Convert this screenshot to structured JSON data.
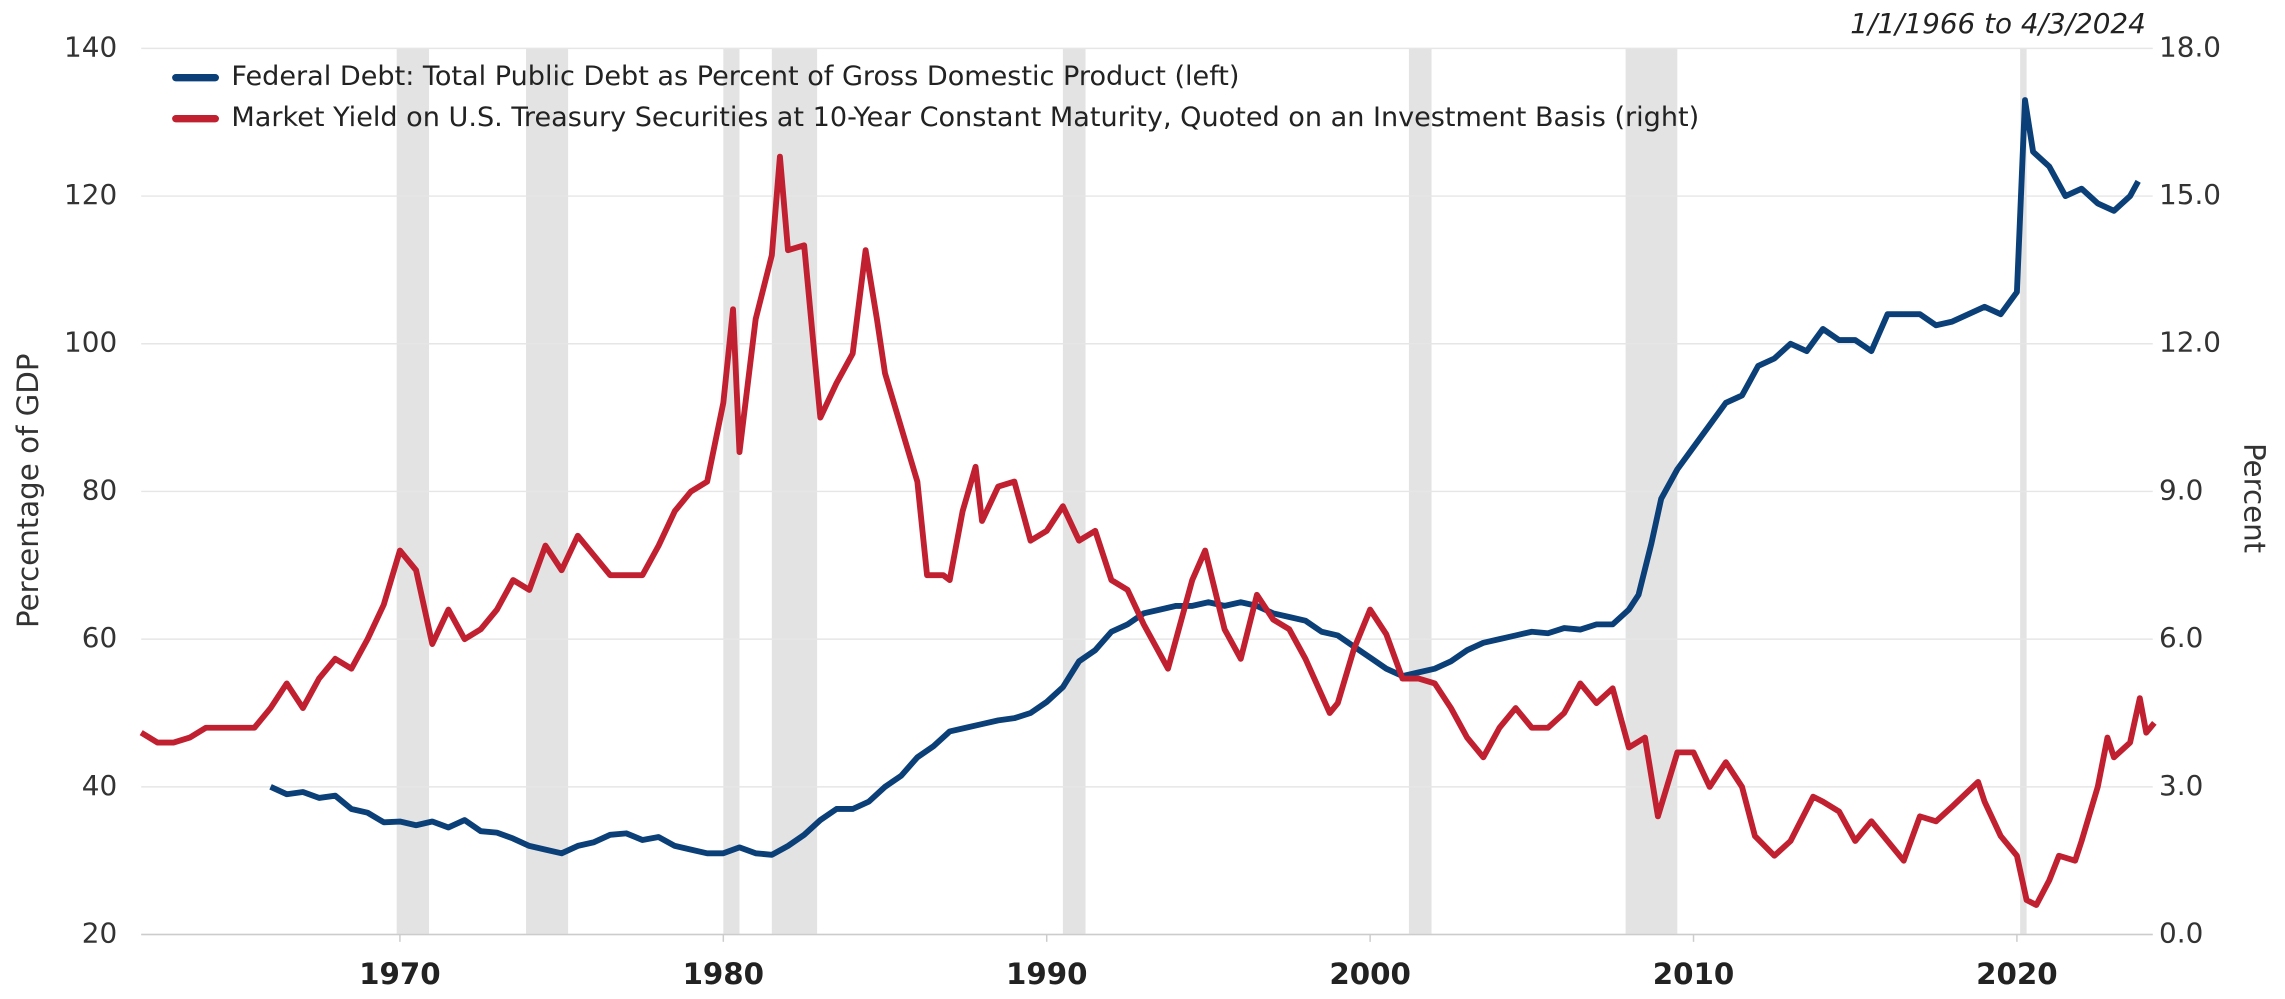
{
  "chart_data": {
    "type": "line",
    "date_range": "1/1/1966 to 4/3/2024",
    "ylabel": "Percentage of GDP",
    "y2label": "Percent",
    "xlim": [
      1962,
      2024.2
    ],
    "xticks": [
      1970,
      1980,
      1990,
      2000,
      2010,
      2020
    ],
    "ylim": [
      20,
      140
    ],
    "yticks": [
      20,
      40,
      60,
      80,
      100,
      120,
      140
    ],
    "y2lim": [
      0,
      18
    ],
    "y2ticks": [
      {
        "value": 0,
        "label": "0.0"
      },
      {
        "value": 3,
        "label": "3.0"
      },
      {
        "value": 6,
        "label": "6.0"
      },
      {
        "value": 9,
        "label": "9.0"
      },
      {
        "value": 12,
        "label": "12.0"
      },
      {
        "value": 15,
        "label": "15.0"
      },
      {
        "value": 18,
        "label": "18.0"
      }
    ],
    "grid": true,
    "legend": "upper left",
    "recessions": [
      [
        1969.9,
        1970.9
      ],
      [
        1973.9,
        1975.2
      ],
      [
        1980.0,
        1980.5
      ],
      [
        1981.5,
        1982.9
      ],
      [
        1990.5,
        1991.2
      ],
      [
        2001.2,
        2001.9
      ],
      [
        2007.9,
        2009.5
      ],
      [
        2020.1,
        2020.3
      ]
    ],
    "recession_color": "#e3e3e3",
    "series": [
      {
        "name": "Federal Debt: Total Public Debt as Percent of Gross Domestic Product (left)",
        "color": "#0b3f78",
        "axis": "y",
        "x": [
          1966,
          1966.5,
          1967,
          1967.5,
          1968,
          1968.5,
          1969,
          1969.5,
          1970,
          1970.5,
          1971,
          1971.5,
          1972,
          1972.5,
          1973,
          1973.5,
          1974,
          1974.5,
          1975,
          1975.5,
          1976,
          1976.5,
          1977,
          1977.5,
          1978,
          1978.5,
          1979,
          1979.5,
          1980,
          1980.5,
          1981,
          1981.5,
          1982,
          1982.5,
          1983,
          1983.5,
          1984,
          1984.5,
          1985,
          1985.5,
          1986,
          1986.5,
          1987,
          1987.5,
          1988,
          1988.5,
          1989,
          1989.5,
          1990,
          1990.5,
          1991,
          1991.5,
          1992,
          1992.5,
          1993,
          1993.5,
          1994,
          1994.5,
          1995,
          1995.5,
          1996,
          1996.5,
          1997,
          1997.5,
          1998,
          1998.5,
          1999,
          1999.5,
          2000,
          2000.5,
          2001,
          2001.5,
          2002,
          2002.5,
          2003,
          2003.5,
          2004,
          2004.5,
          2005,
          2005.5,
          2006,
          2006.5,
          2007,
          2007.5,
          2008,
          2008.3,
          2008.7,
          2009,
          2009.5,
          2010,
          2010.5,
          2011,
          2011.5,
          2012,
          2012.5,
          2013,
          2013.5,
          2014,
          2014.5,
          2015,
          2015.5,
          2016,
          2016.5,
          2017,
          2017.5,
          2018,
          2018.5,
          2019,
          2019.5,
          2020,
          2020.25,
          2020.5,
          2021,
          2021.5,
          2022,
          2022.5,
          2023,
          2023.5,
          2023.75
        ],
        "values": [
          40,
          39,
          39.3,
          38.5,
          38.8,
          37,
          36.5,
          35.2,
          35.3,
          34.8,
          35.3,
          34.5,
          35.5,
          34,
          33.8,
          33,
          32,
          31.5,
          31,
          32,
          32.5,
          33.5,
          33.7,
          32.8,
          33.2,
          32,
          31.5,
          31,
          31,
          31.8,
          31,
          30.8,
          32,
          33.5,
          35.5,
          37,
          37,
          38,
          40,
          41.5,
          44,
          45.5,
          47.5,
          48,
          48.5,
          49,
          49.3,
          50,
          51.5,
          53.5,
          57,
          58.5,
          61,
          62,
          63.5,
          64,
          64.5,
          64.5,
          65,
          64.5,
          65,
          64.5,
          63.5,
          63,
          62.5,
          61,
          60.5,
          59,
          57.5,
          56,
          55,
          55.5,
          56,
          57,
          58.5,
          59.5,
          60,
          60.5,
          61,
          60.8,
          61.5,
          61.3,
          62,
          62,
          64,
          66,
          73,
          79,
          83,
          86,
          89,
          92,
          93,
          97,
          98,
          100,
          99,
          102,
          100.5,
          100.5,
          99,
          104,
          104,
          104,
          102.5,
          103,
          104,
          105,
          104,
          107,
          133,
          126,
          124,
          120,
          121,
          119,
          118,
          120,
          122
        ]
      },
      {
        "name": "Market Yield on U.S. Treasury Securities at 10-Year Constant Maturity, Quoted on an Investment Basis (right)",
        "color": "#c0202f",
        "axis": "y2",
        "x": [
          1962,
          1962.5,
          1963,
          1963.5,
          1964,
          1964.5,
          1965,
          1965.5,
          1966,
          1966.5,
          1967,
          1967.5,
          1968,
          1968.5,
          1969,
          1969.5,
          1970,
          1970.5,
          1971,
          1971.5,
          1972,
          1972.5,
          1973,
          1973.5,
          1974,
          1974.5,
          1975,
          1975.5,
          1976,
          1976.5,
          1977,
          1977.5,
          1978,
          1978.5,
          1979,
          1979.5,
          1980,
          1980.3,
          1980.5,
          1981,
          1981.5,
          1981.75,
          1982,
          1982.5,
          1983,
          1983.5,
          1984,
          1984.4,
          1984.75,
          1985,
          1985.5,
          1986,
          1986.3,
          1986.8,
          1987,
          1987.4,
          1987.8,
          1988,
          1988.5,
          1989,
          1989.5,
          1990,
          1990.5,
          1991,
          1991.5,
          1992,
          1992.5,
          1993,
          1993.75,
          1994,
          1994.5,
          1994.9,
          1995.5,
          1996,
          1996.5,
          1997,
          1997.5,
          1998,
          1998.75,
          1999,
          1999.5,
          2000,
          2000.5,
          2001,
          2001.5,
          2002,
          2002.5,
          2003,
          2003.5,
          2004,
          2004.5,
          2005,
          2005.5,
          2006,
          2006.5,
          2007,
          2007.5,
          2008,
          2008.5,
          2008.9,
          2009.5,
          2010,
          2010.5,
          2011,
          2011.5,
          2011.9,
          2012.5,
          2013,
          2013.7,
          2014,
          2014.5,
          2015,
          2015.5,
          2016,
          2016.5,
          2017,
          2017.5,
          2018,
          2018.8,
          2019,
          2019.5,
          2020,
          2020.3,
          2020.6,
          2021,
          2021.3,
          2021.8,
          2022,
          2022.5,
          2022.8,
          2023,
          2023.5,
          2023.8,
          2024,
          2024.25
        ],
        "values": [
          4.1,
          3.9,
          3.9,
          4.0,
          4.2,
          4.2,
          4.2,
          4.2,
          4.6,
          5.1,
          4.6,
          5.2,
          5.6,
          5.4,
          6.0,
          6.7,
          7.8,
          7.4,
          5.9,
          6.6,
          6.0,
          6.2,
          6.6,
          7.2,
          7.0,
          7.9,
          7.4,
          8.1,
          7.7,
          7.3,
          7.3,
          7.3,
          7.9,
          8.6,
          9.0,
          9.2,
          10.8,
          12.7,
          9.8,
          12.5,
          13.8,
          15.8,
          13.9,
          14.0,
          10.5,
          11.2,
          11.8,
          13.9,
          12.5,
          11.4,
          10.3,
          9.2,
          7.3,
          7.3,
          7.2,
          8.6,
          9.5,
          8.4,
          9.1,
          9.2,
          8.0,
          8.2,
          8.7,
          8.0,
          8.2,
          7.2,
          7.0,
          6.3,
          5.4,
          6.0,
          7.2,
          7.8,
          6.2,
          5.6,
          6.9,
          6.4,
          6.2,
          5.6,
          4.5,
          4.7,
          5.8,
          6.6,
          6.1,
          5.2,
          5.2,
          5.1,
          4.6,
          4.0,
          3.6,
          4.2,
          4.6,
          4.2,
          4.2,
          4.5,
          5.1,
          4.7,
          5.0,
          3.8,
          4.0,
          2.4,
          3.7,
          3.7,
          3.0,
          3.5,
          3.0,
          2.0,
          1.6,
          1.9,
          2.8,
          2.7,
          2.5,
          1.9,
          2.3,
          1.9,
          1.5,
          2.4,
          2.3,
          2.6,
          3.1,
          2.7,
          2.0,
          1.6,
          0.7,
          0.6,
          1.1,
          1.6,
          1.5,
          1.9,
          3.0,
          4.0,
          3.6,
          3.9,
          4.8,
          4.1,
          4.3
        ]
      }
    ]
  }
}
